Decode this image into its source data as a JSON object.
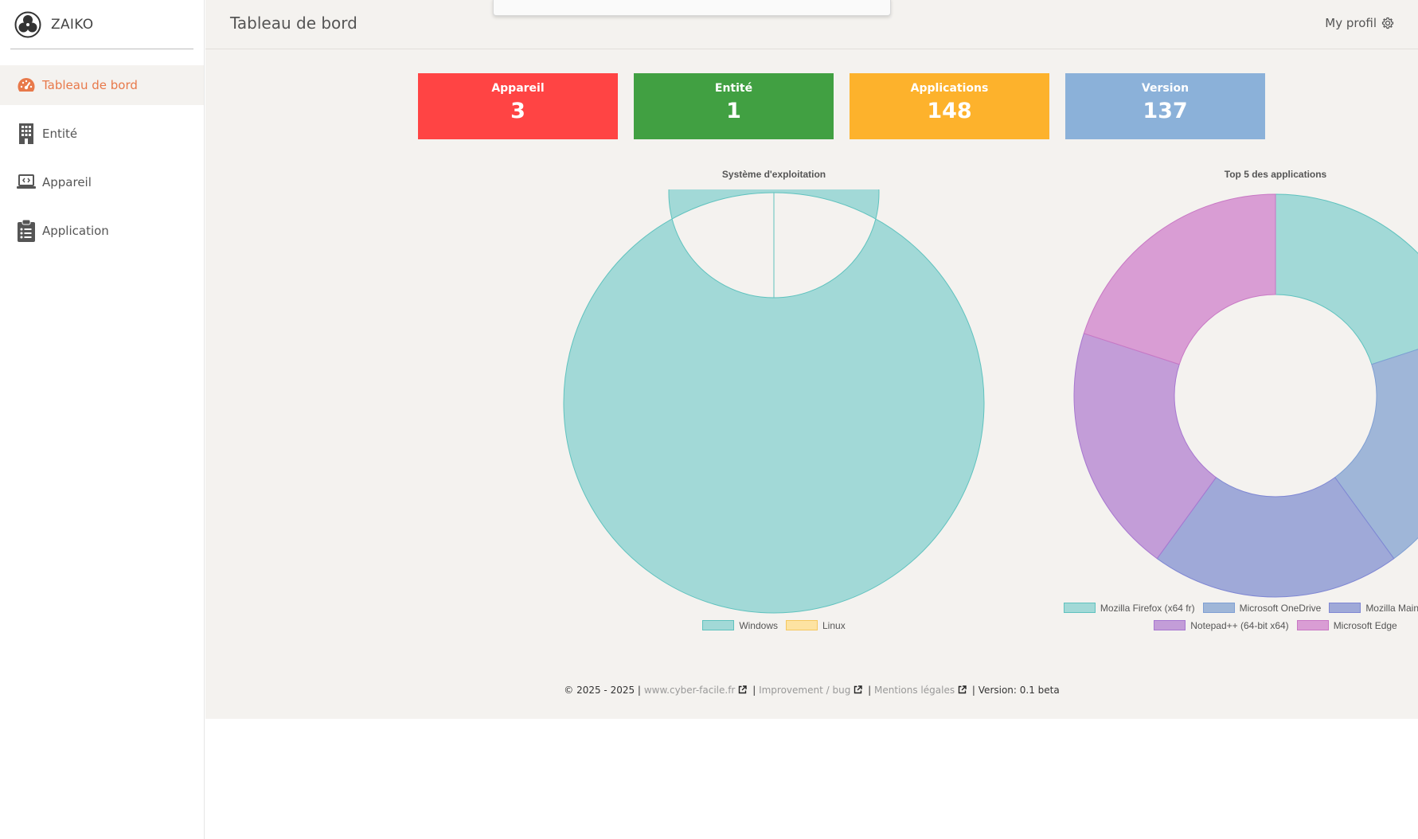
{
  "app": {
    "name": "ZAIKO"
  },
  "sidebar": {
    "items": [
      {
        "label": "Tableau de bord",
        "icon": "gauge-icon",
        "active": true
      },
      {
        "label": "Entité",
        "icon": "building-icon",
        "active": false
      },
      {
        "label": "Appareil",
        "icon": "laptop-icon",
        "active": false
      },
      {
        "label": "Application",
        "icon": "clipboard-list-icon",
        "active": false
      }
    ]
  },
  "header": {
    "title": "Tableau de bord",
    "profile_label": "My profil",
    "profile_icon": "gear-icon"
  },
  "stats": [
    {
      "label": "Appareil",
      "value": "3",
      "color": "#ff4444"
    },
    {
      "label": "Entité",
      "value": "1",
      "color": "#41a042"
    },
    {
      "label": "Applications",
      "value": "148",
      "color": "#fdb22c"
    },
    {
      "label": "Version",
      "value": "137",
      "color": "#8bb1d9"
    }
  ],
  "chart_data": [
    {
      "type": "pie",
      "title": "Système d'exploitation",
      "categories": [
        "Windows",
        "Linux"
      ],
      "values": [
        3,
        0
      ],
      "colors": [
        "#a2d9d7",
        "#fde3a2"
      ],
      "borders": [
        "#5fc2be",
        "#f5c860"
      ]
    },
    {
      "type": "pie",
      "title": "Top 5 des applications",
      "categories": [
        "Mozilla Firefox (x64 fr)",
        "Microsoft OneDrive",
        "Mozilla Maintenance Service",
        "Notepad++ (64-bit x64)",
        "Microsoft Edge"
      ],
      "values": [
        1,
        1,
        1,
        1,
        1
      ],
      "colors": [
        "#a2d9d7",
        "#9fb6d8",
        "#9fa9d8",
        "#c39dd8",
        "#d99dd4"
      ],
      "borders": [
        "#5fc2be",
        "#7f9fd3",
        "#7f87d3",
        "#a777d0",
        "#c878c4"
      ]
    }
  ],
  "footer": {
    "copyright": "© 2025 - 2025 |",
    "link1": "www.cyber-facile.fr",
    "sep1": "|",
    "link2": "Improvement / bug",
    "sep2": "|",
    "link3": "Mentions légales",
    "version": "| Version: 0.1 beta"
  }
}
